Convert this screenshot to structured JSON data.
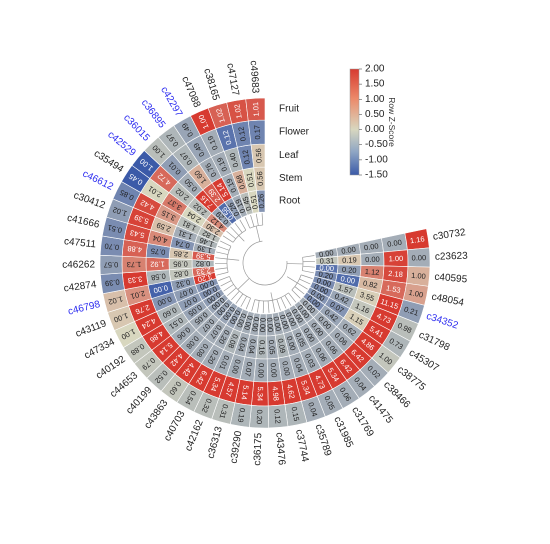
{
  "chart_data": {
    "type": "heatmap",
    "layout": "circular",
    "colorbar": {
      "title": "Row Z-Score",
      "ticks": [
        "2.00",
        "1.50",
        "1.00",
        "0.50",
        "0.00",
        "-0.50",
        "-1.00",
        "-1.50"
      ],
      "tick_values": [
        2.0,
        1.5,
        1.0,
        0.5,
        0.0,
        -0.5,
        -1.0,
        -1.5
      ],
      "range": [
        -1.5,
        2.0
      ],
      "colors": {
        "low": "#3b5aa8",
        "mid": "#d8d7bf",
        "high": "#d73a30"
      }
    },
    "tissues": [
      "Root",
      "Stem",
      "Leaf",
      "Flower",
      "Fruit"
    ],
    "label_colors": {
      "normal": "#222222",
      "highlight": "#2d2df0"
    },
    "rows": [
      {
        "name": "c30732",
        "hl": false,
        "values": [
          "0.00",
          "0.00",
          "0.00",
          "0.00",
          "1.16"
        ],
        "z": [
          -0.5,
          -0.5,
          -0.5,
          -0.5,
          2.0
        ]
      },
      {
        "name": "c23623",
        "hl": false,
        "values": [
          "0.31",
          "0.19",
          "0.00",
          "1.00",
          "0.00"
        ],
        "z": [
          -0.2,
          0.2,
          -0.5,
          1.9,
          -0.5
        ]
      },
      {
        "name": "c40595",
        "hl": false,
        "values": [
          "0.00",
          "0.20",
          "1.12",
          "2.18",
          "1.00"
        ],
        "z": [
          -1.2,
          -0.7,
          1.1,
          1.8,
          0.5
        ]
      },
      {
        "name": "c48054",
        "hl": false,
        "values": [
          "0.20",
          "0.00",
          "0.82",
          "1.53",
          "1.00"
        ],
        "z": [
          -0.9,
          -1.3,
          0.4,
          1.4,
          0.7
        ]
      },
      {
        "name": "c34352",
        "hl": true,
        "values": [
          "0.00",
          "1.57",
          "3.55",
          "11.15",
          "0.21"
        ],
        "z": [
          -0.9,
          -0.3,
          0.1,
          2.0,
          -0.7
        ]
      },
      {
        "name": "c31798",
        "hl": false,
        "values": [
          "0.00",
          "0.42",
          "1.16",
          "4.73",
          "0.98"
        ],
        "z": [
          -0.9,
          -0.6,
          -0.2,
          2.0,
          -0.3
        ]
      },
      {
        "name": "c45307",
        "hl": false,
        "values": [
          "0.00",
          "0.07",
          "1.15",
          "5.41",
          "0.73"
        ],
        "z": [
          -0.8,
          -0.8,
          0.1,
          2.0,
          -0.4
        ]
      },
      {
        "name": "c38775",
        "hl": false,
        "values": [
          "0.00",
          "0.42",
          "0.62",
          "4.86",
          "1.00"
        ],
        "z": [
          -0.9,
          -0.6,
          -0.5,
          2.0,
          -0.2
        ]
      },
      {
        "name": "c38466",
        "hl": false,
        "values": [
          "0.00",
          "0.00",
          "0.06",
          "6.42",
          "0.02"
        ],
        "z": [
          -0.5,
          -0.5,
          -0.5,
          2.0,
          -0.5
        ]
      },
      {
        "name": "c41475",
        "hl": false,
        "values": [
          "0.00",
          "0.00",
          "0.06",
          "6.42",
          "0.04"
        ],
        "z": [
          -0.5,
          -0.5,
          -0.5,
          2.0,
          -0.5
        ]
      },
      {
        "name": "c31769",
        "hl": false,
        "values": [
          "0.00",
          "0.00",
          "0.06",
          "5.34",
          "0.06"
        ],
        "z": [
          -0.5,
          -0.5,
          -0.5,
          2.0,
          -0.5
        ]
      },
      {
        "name": "c31985",
        "hl": false,
        "values": [
          "0.00",
          "0.05",
          "0.03",
          "4.73",
          "0.05"
        ],
        "z": [
          -0.5,
          -0.5,
          -0.5,
          2.0,
          -0.5
        ]
      },
      {
        "name": "c35789",
        "hl": false,
        "values": [
          "0.00",
          "0.00",
          "0.04",
          "5.34",
          "0.04"
        ],
        "z": [
          -0.5,
          -0.5,
          -0.5,
          2.0,
          -0.5
        ]
      },
      {
        "name": "c37744",
        "hl": false,
        "values": [
          "0.00",
          "0.09",
          "0.00",
          "4.62",
          "0.15"
        ],
        "z": [
          -0.5,
          -0.4,
          -0.5,
          2.0,
          -0.4
        ]
      },
      {
        "name": "c43476",
        "hl": false,
        "values": [
          "0.00",
          "0.05",
          "0.00",
          "4.98",
          "0.12"
        ],
        "z": [
          -0.5,
          -0.5,
          -0.5,
          2.0,
          -0.4
        ]
      },
      {
        "name": "c36175",
        "hl": false,
        "values": [
          "0.00",
          "0.16",
          "0.00",
          "5.34",
          "0.20"
        ],
        "z": [
          -0.5,
          -0.4,
          -0.5,
          2.0,
          -0.4
        ]
      },
      {
        "name": "c39290",
        "hl": false,
        "values": [
          "0.00",
          "0.04",
          "0.07",
          "5.14",
          "0.19"
        ],
        "z": [
          -0.5,
          -0.5,
          -0.5,
          2.0,
          -0.4
        ]
      },
      {
        "name": "c36313",
        "hl": false,
        "values": [
          "0.00",
          "0.04",
          "0.00",
          "4.57",
          "0.31"
        ],
        "z": [
          -0.5,
          -0.5,
          -0.5,
          2.0,
          -0.3
        ]
      },
      {
        "name": "c42162",
        "hl": false,
        "values": [
          "0.00",
          "0.08",
          "0.01",
          "5.34",
          "0.32"
        ],
        "z": [
          -0.5,
          -0.4,
          -0.5,
          2.0,
          -0.3
        ]
      },
      {
        "name": "c40703",
        "hl": false,
        "values": [
          "0.00",
          "0.20",
          "0.20",
          "6.42",
          "0.54"
        ],
        "z": [
          -0.6,
          -0.5,
          -0.5,
          2.0,
          -0.3
        ]
      },
      {
        "name": "c43863",
        "hl": false,
        "values": [
          "0.00",
          "0.07",
          "0.08",
          "4.42",
          "0.60"
        ],
        "z": [
          -0.6,
          -0.5,
          -0.5,
          2.0,
          -0.2
        ]
      },
      {
        "name": "c40199",
        "hl": false,
        "values": [
          "0.00",
          "0.07",
          "0.08",
          "4.42",
          "0.52"
        ],
        "z": [
          -0.6,
          -0.5,
          -0.5,
          2.0,
          -0.3
        ]
      },
      {
        "name": "c44653",
        "hl": false,
        "values": [
          "0.00",
          "0.05",
          "0.06",
          "5.14",
          "0.79"
        ],
        "z": [
          -0.6,
          -0.5,
          -0.5,
          2.0,
          -0.2
        ]
      },
      {
        "name": "c40192",
        "hl": false,
        "values": [
          "0.00",
          "0.05",
          "0.51",
          "4.86",
          "0.88"
        ],
        "z": [
          -0.7,
          -0.6,
          -0.4,
          2.0,
          -0.2
        ]
      },
      {
        "name": "c47334",
        "hl": false,
        "values": [
          "0.00",
          "0.07",
          "0.60",
          "4.24",
          "1.00"
        ],
        "z": [
          -0.8,
          -0.7,
          -0.4,
          2.0,
          0.0
        ]
      },
      {
        "name": "c43119",
        "hl": false,
        "values": [
          "0.00",
          "0.07",
          "0.00",
          "2.76",
          "1.00"
        ],
        "z": [
          -0.8,
          -0.7,
          -0.8,
          2.0,
          0.2
        ]
      },
      {
        "name": "c46798",
        "hl": true,
        "values": [
          "3.20",
          "0.32",
          "0.00",
          "2.01",
          "1.02"
        ],
        "z": [
          2.0,
          -0.7,
          -1.4,
          0.9,
          0.3
        ]
      },
      {
        "name": "c42874",
        "hl": false,
        "values": [
          "2.33",
          "0.82",
          "0.58",
          "3.33",
          "0.39"
        ],
        "z": [
          1.4,
          -0.2,
          -0.4,
          2.0,
          -0.9
        ]
      },
      {
        "name": "c46262",
        "hl": false,
        "values": [
          "0.82",
          "0.95",
          "1.92",
          "1.73",
          "0.57"
        ],
        "z": [
          -0.4,
          -0.2,
          1.4,
          1.1,
          -0.7
        ]
      },
      {
        "name": "c47511",
        "hl": false,
        "values": [
          "5.39",
          "2.85",
          "0.75",
          "4.88",
          "0.70"
        ],
        "z": [
          1.6,
          0.2,
          -0.9,
          1.5,
          -0.9
        ]
      },
      {
        "name": "c41666",
        "hl": false,
        "values": [
          "1.39",
          "0.74",
          "4.04",
          "5.43",
          "0.51"
        ],
        "z": [
          -0.5,
          -0.8,
          1.0,
          1.8,
          -0.9
        ]
      },
      {
        "name": "c30412",
        "hl": false,
        "values": [
          "1.46",
          "1.31",
          "2.59",
          "5.39",
          "1.02"
        ],
        "z": [
          -0.4,
          -0.5,
          0.3,
          1.9,
          -0.7
        ]
      },
      {
        "name": "c46612",
        "hl": true,
        "values": [
          "1.82",
          "1.81",
          "3.15",
          "4.42",
          "0.85"
        ],
        "z": [
          -0.3,
          -0.3,
          0.8,
          1.8,
          -1.0
        ]
      },
      {
        "name": "c35494",
        "hl": false,
        "values": [
          "2.30",
          "2.04",
          "3.37",
          "2.01",
          "0.45"
        ],
        "z": [
          0.3,
          0.0,
          1.2,
          0.0,
          -1.5
        ]
      },
      {
        "name": "c42529",
        "hl": true,
        "values": [
          "4.12",
          "2.02",
          "2.02",
          "4.72",
          "1.00"
        ],
        "z": [
          1.0,
          -0.3,
          -0.3,
          1.4,
          -1.5
        ]
      },
      {
        "name": "c36015",
        "hl": true,
        "values": [
          "0.29",
          "7.16",
          "0.50",
          "0.01",
          "1.00"
        ],
        "z": [
          -0.6,
          2.0,
          -0.5,
          -0.7,
          -0.3
        ]
      },
      {
        "name": "c36895",
        "hl": true,
        "values": [
          "0.56",
          "2.39",
          "1.60",
          "0.97",
          "0.97"
        ],
        "z": [
          -1.3,
          1.6,
          0.5,
          -0.4,
          -0.4
        ]
      },
      {
        "name": "c42297",
        "hl": true,
        "values": [
          "0.26",
          "5.14",
          "0.76",
          "0.49",
          "0.49"
        ],
        "z": [
          -0.7,
          2.0,
          -0.5,
          -0.6,
          -0.6
        ]
      },
      {
        "name": "c47088",
        "hl": false,
        "values": [
          "0.19",
          "0.19",
          "0.19",
          "0.19",
          "1.00"
        ],
        "z": [
          -0.5,
          -0.5,
          -0.5,
          -0.5,
          2.0
        ]
      },
      {
        "name": "c38165",
        "hl": false,
        "values": [
          "0.45",
          "0.68",
          "0.40",
          "0.12",
          "1.02"
        ],
        "z": [
          -0.3,
          0.5,
          -0.4,
          -1.2,
          1.5
        ]
      },
      {
        "name": "c47127",
        "hl": false,
        "values": [
          "0.51",
          "0.51",
          "0.12",
          "0.12",
          "1.02"
        ],
        "z": [
          0.0,
          0.0,
          -1.0,
          -1.0,
          1.7
        ]
      },
      {
        "name": "c49683",
        "hl": false,
        "values": [
          "0.26",
          "0.56",
          "0.56",
          "0.17",
          "1.01"
        ],
        "z": [
          -0.8,
          0.2,
          0.2,
          -1.0,
          1.6
        ]
      }
    ]
  }
}
